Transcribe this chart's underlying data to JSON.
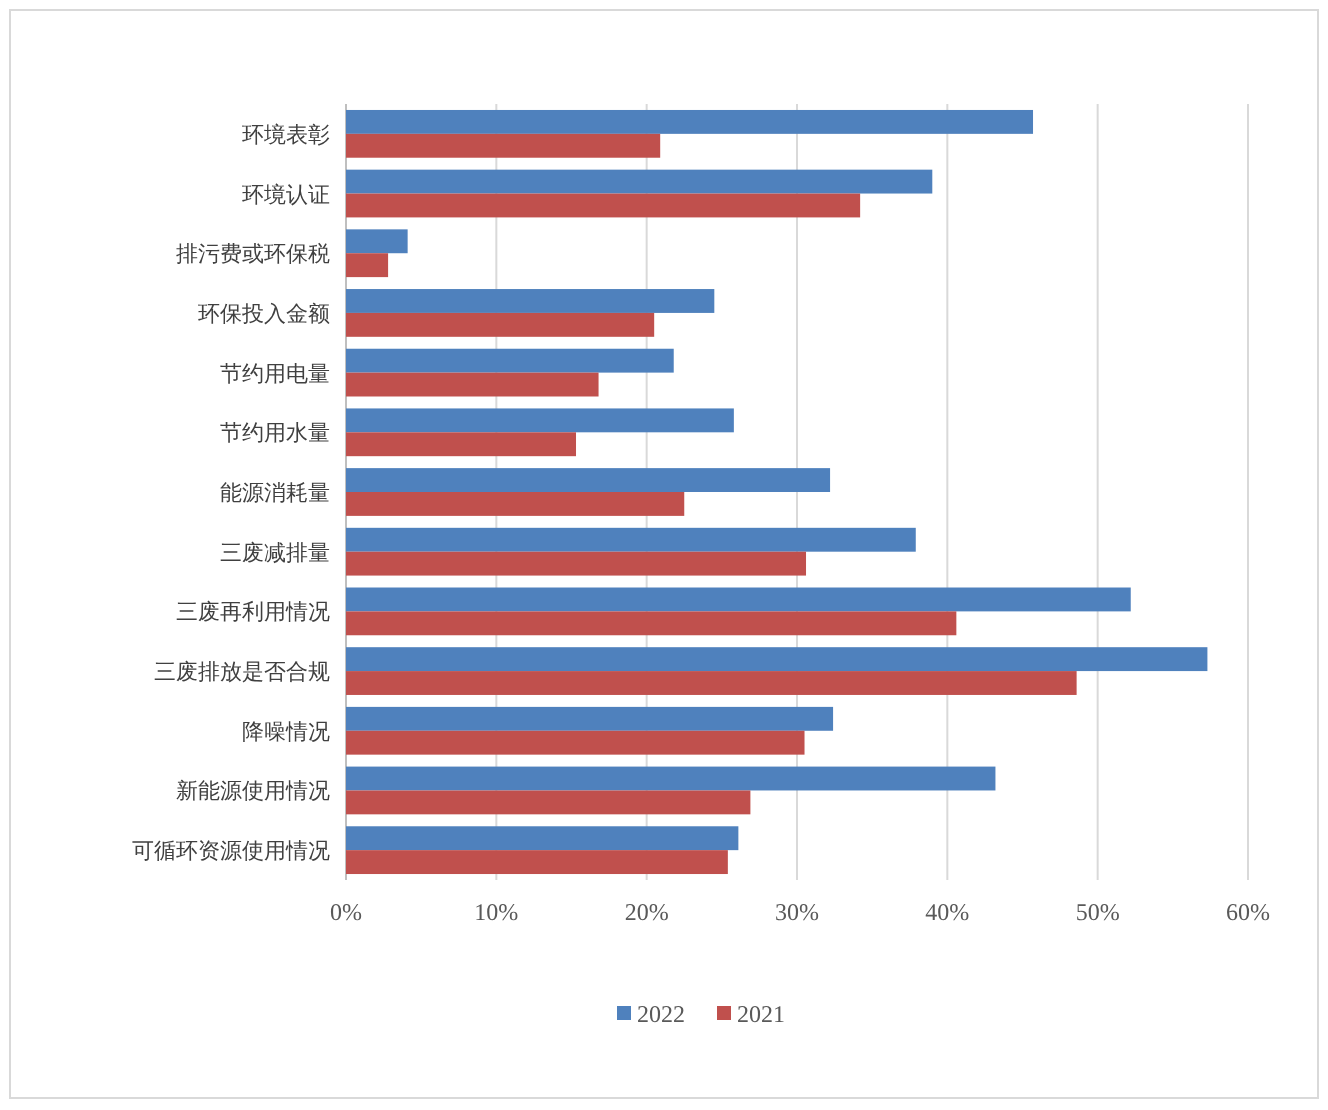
{
  "chart_data": {
    "type": "bar",
    "orientation": "horizontal",
    "categories": [
      "环境表彰",
      "环境认证",
      "排污费或环保税",
      "环保投入金额",
      "节约用电量",
      "节约用水量",
      "能源消耗量",
      "三废减排量",
      "三废再利用情况",
      "三废排放是否合规",
      "降噪情况",
      "新能源使用情况",
      "可循环资源使用情况"
    ],
    "series": [
      {
        "name": "2022",
        "color": "#4f81bd",
        "values": [
          45.7,
          39.0,
          4.1,
          24.5,
          21.8,
          25.8,
          32.2,
          37.9,
          52.2,
          57.3,
          32.4,
          43.2,
          26.1
        ]
      },
      {
        "name": "2021",
        "color": "#c0504d",
        "values": [
          20.9,
          34.2,
          2.8,
          20.5,
          16.8,
          15.3,
          22.5,
          30.6,
          40.6,
          48.6,
          30.5,
          26.9,
          25.4
        ]
      }
    ],
    "xlim": [
      0,
      60
    ],
    "xticks": [
      {
        "value": 0,
        "label": "0%"
      },
      {
        "value": 10,
        "label": "10%"
      },
      {
        "value": 20,
        "label": "20%"
      },
      {
        "value": 30,
        "label": "30%"
      },
      {
        "value": 40,
        "label": "40%"
      },
      {
        "value": 50,
        "label": "50%"
      },
      {
        "value": 60,
        "label": "60%"
      }
    ],
    "grid": "x",
    "legend": "bottom"
  }
}
